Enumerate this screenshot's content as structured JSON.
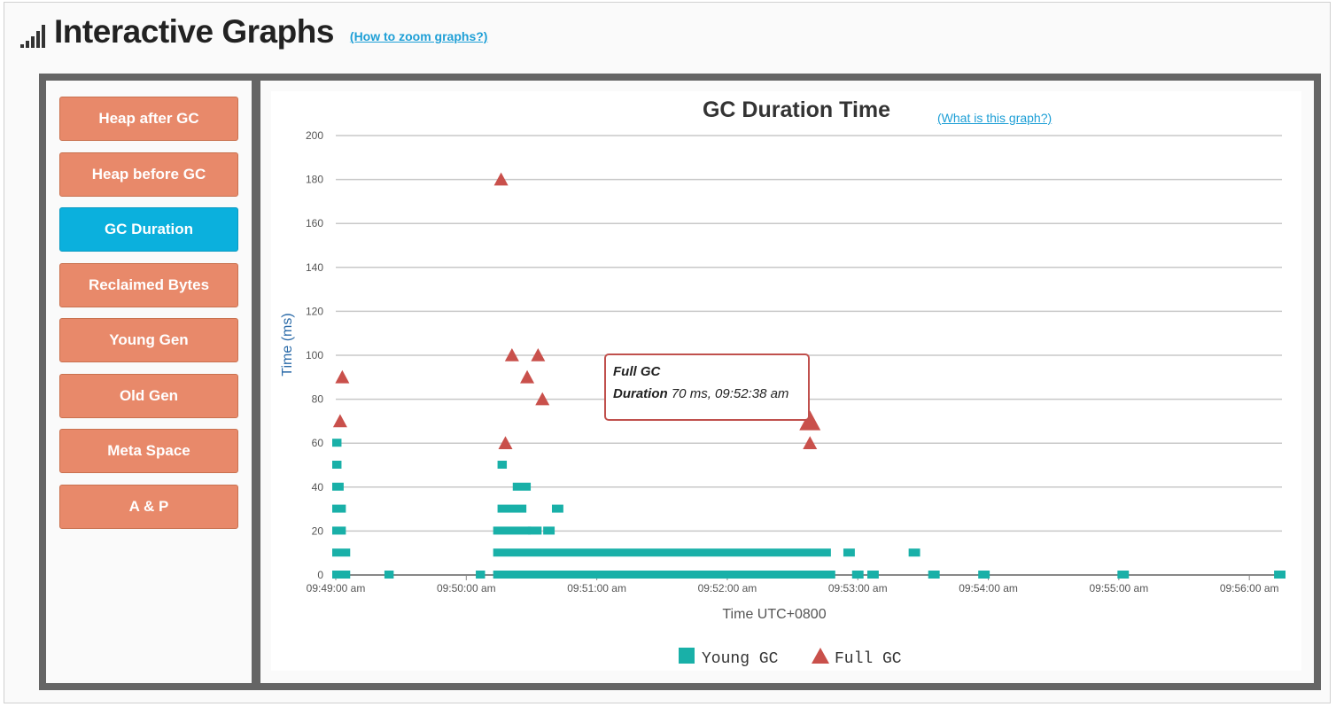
{
  "header": {
    "title": "Interactive Graphs",
    "zoom_link": "(How to zoom graphs?)"
  },
  "sidebar": {
    "items": [
      {
        "label": "Heap after GC",
        "active": false
      },
      {
        "label": "Heap before GC",
        "active": false
      },
      {
        "label": "GC Duration",
        "active": true
      },
      {
        "label": "Reclaimed Bytes",
        "active": false
      },
      {
        "label": "Young Gen",
        "active": false
      },
      {
        "label": "Old Gen",
        "active": false
      },
      {
        "label": "Meta Space",
        "active": false
      },
      {
        "label": "A & P",
        "active": false
      }
    ]
  },
  "colors": {
    "young": "#19b0a8",
    "full": "#c9504b",
    "button": "#e8896a",
    "active_button": "#0bb0dd"
  },
  "tooltip": {
    "title": "Full GC",
    "label": "Duration",
    "value": "70 ms, 09:52:38 am"
  },
  "chart_data": {
    "type": "scatter",
    "title": "GC Duration Time",
    "help_link": "(What is this graph?)",
    "xlabel": "Time UTC+0800",
    "ylabel": "Time (ms)",
    "ylim": [
      0,
      200
    ],
    "yticks": [
      0,
      20,
      40,
      60,
      80,
      100,
      120,
      140,
      160,
      180,
      200
    ],
    "xlim": [
      "09:49:00",
      "09:56:15"
    ],
    "xticks": [
      {
        "t": "09:49:00",
        "label": "09:49:00 am"
      },
      {
        "t": "09:50:00",
        "label": "09:50:00 am"
      },
      {
        "t": "09:51:00",
        "label": "09:51:00 am"
      },
      {
        "t": "09:52:00",
        "label": "09:52:00 am"
      },
      {
        "t": "09:53:00",
        "label": "09:53:00 am"
      },
      {
        "t": "09:54:00",
        "label": "09:54:00 am"
      },
      {
        "t": "09:55:00",
        "label": "09:55:00 am"
      },
      {
        "t": "09:56:00",
        "label": "09:56:00 am"
      }
    ],
    "legend": {
      "position": "bottom"
    },
    "grid": true,
    "series": [
      {
        "name": "Young GC",
        "marker": "square",
        "runs": [
          {
            "from": "09:49:00",
            "to": "09:49:01",
            "y": 60
          },
          {
            "from": "09:49:00",
            "to": "09:49:01",
            "y": 50
          },
          {
            "from": "09:49:00",
            "to": "09:49:02",
            "y": 40
          },
          {
            "from": "09:49:00",
            "to": "09:49:03",
            "y": 30
          },
          {
            "from": "09:49:00",
            "to": "09:49:03",
            "y": 20
          },
          {
            "from": "09:49:00",
            "to": "09:49:05",
            "y": 10
          },
          {
            "from": "09:49:00",
            "to": "09:49:05",
            "y": 0
          },
          {
            "from": "09:49:24",
            "to": "09:49:25",
            "y": 0
          },
          {
            "from": "09:50:06",
            "to": "09:50:07",
            "y": 0
          },
          {
            "from": "09:50:14",
            "to": "09:52:48",
            "y": 0
          },
          {
            "from": "09:50:14",
            "to": "09:52:46",
            "y": 10
          },
          {
            "from": "09:50:14",
            "to": "09:50:28",
            "y": 20
          },
          {
            "from": "09:50:30",
            "to": "09:50:33",
            "y": 20
          },
          {
            "from": "09:50:37",
            "to": "09:50:39",
            "y": 20
          },
          {
            "from": "09:50:16",
            "to": "09:50:26",
            "y": 30
          },
          {
            "from": "09:50:41",
            "to": "09:50:43",
            "y": 30
          },
          {
            "from": "09:50:23",
            "to": "09:50:28",
            "y": 40
          },
          {
            "from": "09:50:16",
            "to": "09:50:17",
            "y": 50
          },
          {
            "from": "09:52:55",
            "to": "09:52:57",
            "y": 10
          },
          {
            "from": "09:53:25",
            "to": "09:53:27",
            "y": 10
          },
          {
            "from": "09:52:59",
            "to": "09:53:01",
            "y": 0
          },
          {
            "from": "09:53:06",
            "to": "09:53:08",
            "y": 0
          },
          {
            "from": "09:53:34",
            "to": "09:53:36",
            "y": 0
          },
          {
            "from": "09:53:57",
            "to": "09:53:59",
            "y": 0
          },
          {
            "from": "09:55:01",
            "to": "09:55:03",
            "y": 0
          },
          {
            "from": "09:56:13",
            "to": "09:56:15",
            "y": 0
          }
        ]
      },
      {
        "name": "Full GC",
        "marker": "triangle",
        "points": [
          {
            "t": "09:49:02",
            "y": 70
          },
          {
            "t": "09:49:03",
            "y": 90
          },
          {
            "t": "09:50:16",
            "y": 180
          },
          {
            "t": "09:50:18",
            "y": 60
          },
          {
            "t": "09:50:21",
            "y": 100
          },
          {
            "t": "09:50:28",
            "y": 90
          },
          {
            "t": "09:50:33",
            "y": 100
          },
          {
            "t": "09:50:35",
            "y": 80
          },
          {
            "t": "09:52:38",
            "y": 70,
            "highlight": true
          },
          {
            "t": "09:52:38",
            "y": 60
          }
        ]
      }
    ]
  }
}
